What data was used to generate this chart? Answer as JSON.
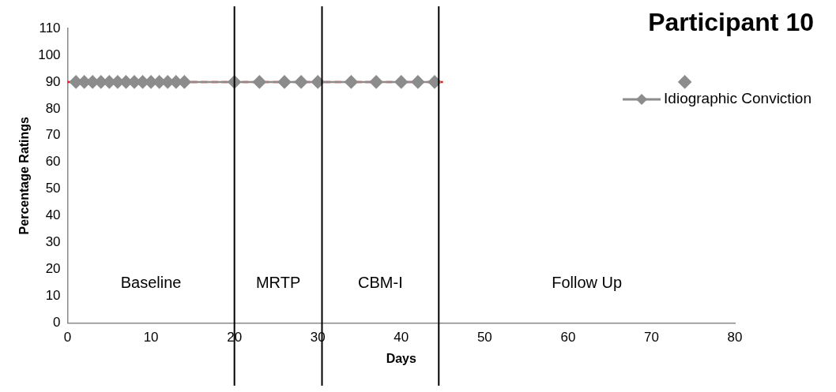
{
  "chart_data": {
    "type": "line",
    "title": "Participant 10",
    "xlabel": "Days",
    "ylabel": "Percentage Ratings",
    "xlim": [
      0,
      80
    ],
    "xticks": [
      0,
      10,
      20,
      30,
      40,
      50,
      60,
      70,
      80
    ],
    "ylim": [
      0,
      110
    ],
    "yticks": [
      0,
      10,
      20,
      30,
      40,
      50,
      60,
      70,
      80,
      90,
      100,
      110
    ],
    "grid": false,
    "legend": "top right",
    "series": [
      {
        "name": "Idiographic Conviction",
        "color": "#8c8c8c",
        "marker": "diamond",
        "x": [
          1,
          2,
          3,
          4,
          5,
          6,
          7,
          8,
          9,
          10,
          11,
          12,
          13,
          14,
          20,
          23,
          26,
          28,
          30,
          34,
          37,
          40,
          42,
          44
        ],
        "values": [
          90,
          90,
          90,
          90,
          90,
          90,
          90,
          90,
          90,
          90,
          90,
          90,
          90,
          90,
          90,
          90,
          90,
          90,
          90,
          90,
          90,
          90,
          90,
          90
        ]
      },
      {
        "type": "scatter",
        "color": "#8c8c8c",
        "marker": "diamond",
        "x": [
          74
        ],
        "values": [
          90
        ]
      },
      {
        "type": "line",
        "color": "#ff0000",
        "marker": "none",
        "line_style": "dashed",
        "x": [
          0,
          45
        ],
        "values": [
          90,
          90
        ]
      }
    ],
    "ref_lines": [
      {
        "axis": "x",
        "value": 20,
        "color": "#000000"
      },
      {
        "axis": "x",
        "value": 30.5,
        "color": "#000000"
      },
      {
        "axis": "x",
        "value": 44.5,
        "color": "#000000"
      }
    ],
    "annotations": [
      "Baseline",
      "MRTP",
      "CBM-I",
      "Follow Up"
    ]
  }
}
